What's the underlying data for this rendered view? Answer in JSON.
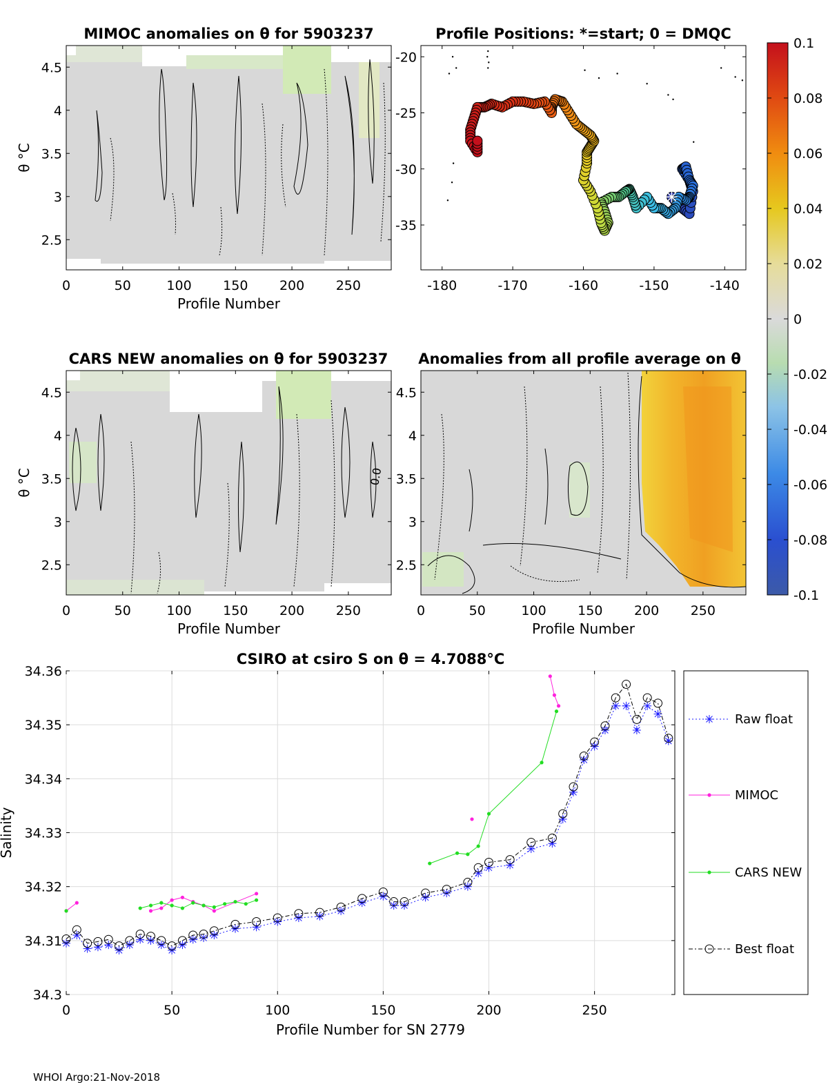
{
  "footer": "WHOI Argo:21-Nov-2018",
  "chart_data": [
    {
      "id": "mimoc",
      "type": "heatmap",
      "title": "MIMOC anomalies on θ  for 5903237",
      "xlabel": "Profile Number",
      "ylabel": "θ °C",
      "xlim": [
        0,
        288
      ],
      "ylim": [
        2.15,
        4.75
      ],
      "xticks": [
        "0",
        "50",
        "100",
        "150",
        "200",
        "250"
      ],
      "yticks": [
        "2.5",
        "3",
        "3.5",
        "4",
        "4.5"
      ]
    },
    {
      "id": "positions",
      "type": "scatter",
      "title": "Profile Positions: *=start; 0 = DMQC",
      "xlabel": "",
      "ylabel": "",
      "xlim": [
        -183,
        -137
      ],
      "ylim": [
        -39,
        -19
      ],
      "xticks": [
        "-180",
        "-170",
        "-160",
        "-150",
        "-140"
      ],
      "yticks": [
        "-20",
        "-25",
        "-30",
        "-35"
      ],
      "track_lon": [
        -147.5,
        -146,
        -145,
        -144.5,
        -145,
        -146,
        -145.5,
        -145,
        -144.5,
        -145,
        -145.5,
        -146.5,
        -147,
        -148,
        -149,
        -150,
        -151,
        -152.5,
        -153,
        -153.5,
        -154,
        -155,
        -156,
        -157.5,
        -157,
        -156.5,
        -157,
        -157.5,
        -158,
        -159,
        -160,
        -159.5,
        -159.5,
        -159,
        -158.5,
        -159,
        -160,
        -161,
        -162,
        -163,
        -164,
        -164.5,
        -164.5,
        -165.5,
        -167,
        -168.5,
        -170,
        -171.5,
        -173,
        -174,
        -175,
        -175.5,
        -176,
        -176,
        -175,
        -175
      ],
      "track_lat": [
        -32.5,
        -33.5,
        -34,
        -32,
        -31,
        -30,
        -29.8,
        -31,
        -31.5,
        -32.5,
        -32.8,
        -32.5,
        -33.5,
        -34,
        -33.5,
        -33.5,
        -32.5,
        -33.5,
        -32.5,
        -31.8,
        -32,
        -32.5,
        -32.5,
        -33,
        -33.8,
        -34.8,
        -35.5,
        -34.8,
        -33.5,
        -32,
        -31,
        -29.5,
        -28.5,
        -28,
        -27.5,
        -27,
        -26.5,
        -26,
        -25,
        -24,
        -23.8,
        -24.5,
        -25,
        -24,
        -24.2,
        -24,
        -24,
        -24.5,
        -24.2,
        -24.5,
        -24.5,
        -25.5,
        -26.5,
        -27.5,
        -28.5,
        -27.5
      ],
      "track_dates": [
        0,
        0.04,
        0.07,
        0.1,
        0.12,
        0.14,
        0.16,
        0.18,
        0.2,
        0.22,
        0.24,
        0.26,
        0.28,
        0.3,
        0.32,
        0.34,
        0.36,
        0.38,
        0.4,
        0.42,
        0.44,
        0.46,
        0.48,
        0.5,
        0.51,
        0.52,
        0.53,
        0.54,
        0.56,
        0.58,
        0.6,
        0.62,
        0.64,
        0.66,
        0.68,
        0.7,
        0.72,
        0.74,
        0.76,
        0.78,
        0.8,
        0.82,
        0.84,
        0.86,
        0.88,
        0.9,
        0.92,
        0.93,
        0.94,
        0.95,
        0.96,
        0.97,
        0.98,
        0.99,
        0.995,
        1
      ],
      "start_lon": -147.5,
      "start_lat": -32.5
    },
    {
      "id": "cars",
      "type": "heatmap",
      "title": "CARS NEW anomalies on θ for 5903237",
      "xlabel": "Profile Number",
      "ylabel": "θ °C",
      "xlim": [
        0,
        288
      ],
      "ylim": [
        2.15,
        4.75
      ],
      "xticks": [
        "0",
        "50",
        "100",
        "150",
        "200",
        "250"
      ],
      "yticks": [
        "2.5",
        "3",
        "3.5",
        "4",
        "4.5"
      ]
    },
    {
      "id": "allavg",
      "type": "heatmap",
      "title": "Anomalies from all profile average on θ",
      "xlabel": "Profile Number",
      "ylabel": "",
      "xlim": [
        0,
        288
      ],
      "ylim": [
        2.15,
        4.75
      ],
      "xticks": [
        "0",
        "50",
        "100",
        "150",
        "200",
        "250"
      ],
      "yticks": [
        "2.5",
        "3",
        "3.5",
        "4",
        "4.5"
      ]
    },
    {
      "id": "colorbar",
      "type": "heatmap",
      "range": [
        -0.1,
        0.1
      ],
      "ticks": [
        "0.1",
        "0.08",
        "0.06",
        "0.04",
        "0.02",
        "0",
        "-0.02",
        "-0.04",
        "-0.06",
        "-0.08",
        "-0.1"
      ]
    },
    {
      "id": "salinity",
      "type": "line",
      "title": "CSIRO at csiro S on θ = 4.7088°C",
      "xlabel": "Profile Number for SN 2779",
      "ylabel": "Salinity",
      "xlim": [
        0,
        288
      ],
      "ylim": [
        34.3,
        34.36
      ],
      "grid": true,
      "xticks": [
        "0",
        "50",
        "100",
        "150",
        "200",
        "250"
      ],
      "yticks": [
        "34.3",
        "34.31",
        "34.32",
        "34.33",
        "34.34",
        "34.35",
        "34.36"
      ],
      "legend_position": "right",
      "series": [
        {
          "name": "Raw float",
          "x": [
            0,
            5,
            10,
            15,
            20,
            25,
            30,
            35,
            40,
            45,
            50,
            55,
            60,
            65,
            70,
            80,
            90,
            100,
            110,
            120,
            130,
            140,
            150,
            155,
            160,
            170,
            180,
            190,
            195,
            200,
            210,
            220,
            230,
            235,
            240,
            245,
            250,
            255,
            260,
            265,
            270,
            275,
            280,
            285
          ],
          "y": [
            34.3095,
            34.311,
            34.3085,
            34.3088,
            34.3092,
            34.3082,
            34.3092,
            34.3102,
            34.31,
            34.3092,
            34.3082,
            34.3092,
            34.3102,
            34.3105,
            34.311,
            34.3122,
            34.3125,
            34.3135,
            34.3142,
            34.3145,
            34.3155,
            34.317,
            34.3182,
            34.3165,
            34.3165,
            34.318,
            34.3188,
            34.32,
            34.3225,
            34.3235,
            34.324,
            34.327,
            34.328,
            34.3325,
            34.3375,
            34.3435,
            34.346,
            34.349,
            34.3535,
            34.3535,
            34.349,
            34.3535,
            34.352,
            34.347
          ]
        },
        {
          "name": "MIMOC",
          "x": [
            0,
            5,
            40,
            45,
            50,
            55,
            60,
            65,
            70,
            90,
            192,
            229,
            231,
            233
          ],
          "y": [
            34.3155,
            34.317,
            34.3155,
            34.316,
            34.3175,
            34.318,
            34.3172,
            34.3165,
            34.3155,
            34.3187,
            34.3325,
            34.359,
            34.3555,
            34.3535
          ]
        },
        {
          "name": "CARS NEW",
          "x": [
            0,
            35,
            40,
            45,
            50,
            55,
            60,
            65,
            70,
            75,
            80,
            85,
            90,
            172,
            185,
            190,
            195,
            200,
            225,
            232
          ],
          "y": [
            34.3155,
            34.316,
            34.3165,
            34.317,
            34.3165,
            34.316,
            34.317,
            34.3165,
            34.3162,
            34.3168,
            34.3172,
            34.3168,
            34.3175,
            34.3243,
            34.3262,
            34.326,
            34.3275,
            34.3335,
            34.343,
            34.3525
          ]
        },
        {
          "name": "Best float",
          "x": [
            0,
            5,
            10,
            15,
            20,
            25,
            30,
            35,
            40,
            45,
            50,
            55,
            60,
            65,
            70,
            80,
            90,
            100,
            110,
            120,
            130,
            140,
            150,
            155,
            160,
            170,
            180,
            190,
            195,
            200,
            210,
            220,
            230,
            235,
            240,
            245,
            250,
            255,
            260,
            265,
            270,
            275,
            280,
            285
          ],
          "y": [
            34.3103,
            34.312,
            34.3095,
            34.3098,
            34.3102,
            34.309,
            34.31,
            34.3112,
            34.3108,
            34.31,
            34.309,
            34.31,
            34.311,
            34.3112,
            34.3118,
            34.313,
            34.3135,
            34.3142,
            34.315,
            34.3152,
            34.3162,
            34.3178,
            34.319,
            34.3172,
            34.3172,
            34.3188,
            34.3195,
            34.3208,
            34.3235,
            34.3245,
            34.325,
            34.3282,
            34.329,
            34.3335,
            34.3385,
            34.3442,
            34.3468,
            34.3498,
            34.355,
            34.3575,
            34.351,
            34.355,
            34.354,
            34.3475
          ]
        }
      ]
    }
  ]
}
